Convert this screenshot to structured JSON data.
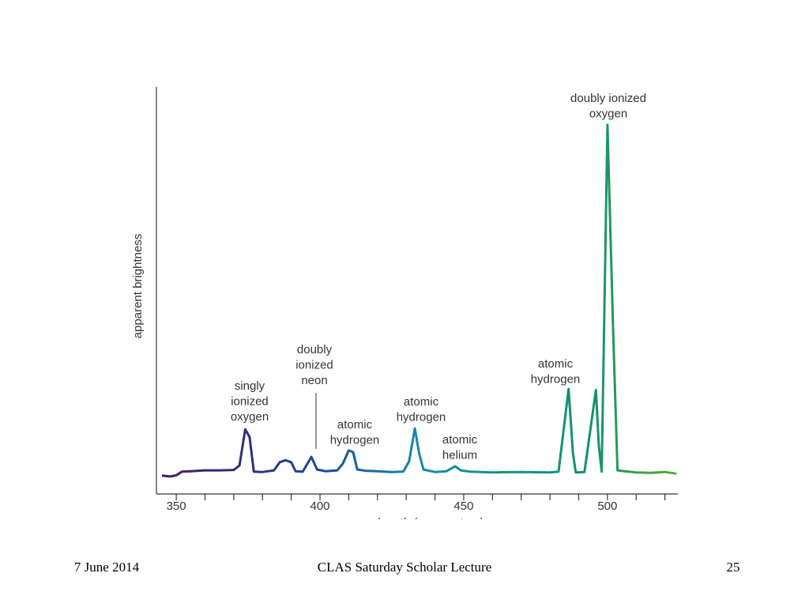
{
  "chart_data": {
    "type": "line",
    "x_label": "wavelength (nanometers)",
    "y_label": "apparent brightness",
    "x": [
      345,
      348,
      350,
      352,
      355,
      360,
      365,
      370,
      372,
      374,
      375.5,
      377,
      380,
      384,
      386,
      388,
      390,
      391.5,
      394,
      397,
      399,
      402,
      406,
      408,
      410,
      411.5,
      413,
      416,
      420,
      425,
      429,
      431,
      433,
      434.5,
      436,
      440,
      444,
      447,
      449,
      452,
      460,
      470,
      480,
      483,
      486.5,
      488,
      489,
      492,
      496,
      497,
      498,
      500,
      502,
      503.5,
      506,
      510,
      515,
      520,
      524
    ],
    "y": [
      4.5,
      4.3,
      4.6,
      5.5,
      5.6,
      5.8,
      5.8,
      5.9,
      7,
      15.9,
      14,
      5.5,
      5.4,
      5.8,
      7.8,
      8.3,
      7.8,
      5.6,
      5.5,
      9.1,
      6,
      5.6,
      5.8,
      7.5,
      10.7,
      10.3,
      6,
      5.7,
      5.6,
      5.4,
      5.5,
      8,
      16.1,
      10,
      6,
      5.4,
      5.6,
      6.8,
      5.8,
      5.5,
      5.3,
      5.4,
      5.3,
      5.5,
      25.8,
      10,
      5.3,
      5.4,
      25.6,
      12,
      5.5,
      90.7,
      40,
      5.8,
      5.6,
      5.3,
      5.2,
      5.4,
      5.0
    ],
    "color_stops": [
      "#4a1a5c",
      "#2a2f7e",
      "#1a4f9a",
      "#1788ac",
      "#14957c",
      "#139070",
      "#5aaa28"
    ],
    "xlim": [
      343.1,
      524.5
    ],
    "ylim": [
      0,
      100
    ],
    "xticks": [
      350,
      400,
      450,
      500
    ],
    "xminor_ticks": [
      360,
      370,
      380,
      390,
      410,
      420,
      430,
      440,
      460,
      470,
      480,
      490,
      510,
      520
    ],
    "annotations": [
      {
        "lines": [
          "doubly ionized",
          "oxygen"
        ]
      },
      {
        "lines": [
          "doubly",
          "ionized",
          "neon"
        ]
      },
      {
        "lines": [
          "singly",
          "ionized",
          "oxygen"
        ]
      },
      {
        "lines": [
          "atomic",
          "hydrogen"
        ]
      },
      {
        "lines": [
          "atomic",
          "hydrogen"
        ]
      },
      {
        "lines": [
          "atomic",
          "helium"
        ]
      },
      {
        "lines": [
          "atomic",
          "hydrogen"
        ]
      }
    ]
  },
  "footer": {
    "date": "7 June 2014",
    "title": "CLAS Saturday Scholar Lecture",
    "page": "25"
  }
}
